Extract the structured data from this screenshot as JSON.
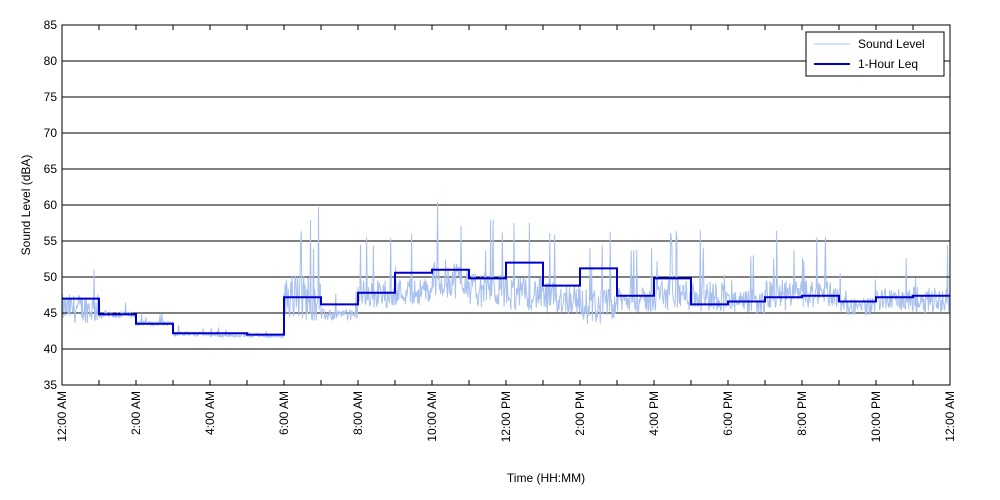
{
  "chart_data": {
    "type": "line",
    "xlabel": "Time (HH:MM)",
    "ylabel": "Sound Level (dBA)",
    "xlim": [
      0,
      24
    ],
    "ylim": [
      35,
      85
    ],
    "grid": "horizontal",
    "legend_position": "top-right",
    "x_ticks": [
      0,
      2,
      4,
      6,
      8,
      10,
      12,
      14,
      16,
      18,
      20,
      22,
      24
    ],
    "x_tick_labels": [
      "12:00 AM",
      "2:00 AM",
      "4:00 AM",
      "6:00 AM",
      "8:00 AM",
      "10:00 AM",
      "12:00 PM",
      "2:00 PM",
      "4:00 PM",
      "6:00 PM",
      "8:00 PM",
      "10:00 PM",
      "12:00 AM"
    ],
    "y_ticks": [
      35,
      40,
      45,
      50,
      55,
      60,
      65,
      70,
      75,
      80,
      85
    ],
    "series": [
      {
        "name": "Sound Level",
        "color": "#a8c0ee",
        "hourly_range": [
          [
            42.5,
            54.0
          ],
          [
            44.0,
            46.5
          ],
          [
            43.0,
            45.0
          ],
          [
            41.5,
            43.5
          ],
          [
            41.5,
            43.0
          ],
          [
            41.5,
            42.5
          ],
          [
            42.0,
            61.0
          ],
          [
            43.5,
            48.0
          ],
          [
            44.5,
            56.0
          ],
          [
            45.0,
            56.0
          ],
          [
            45.5,
            61.0
          ],
          [
            44.5,
            58.0
          ],
          [
            44.0,
            57.5
          ],
          [
            43.5,
            56.5
          ],
          [
            42.0,
            56.5
          ],
          [
            44.0,
            54.0
          ],
          [
            44.0,
            57.0
          ],
          [
            44.0,
            56.5
          ],
          [
            44.0,
            53.0
          ],
          [
            44.0,
            56.5
          ],
          [
            44.5,
            56.0
          ],
          [
            44.0,
            51.0
          ],
          [
            44.5,
            53.0
          ],
          [
            44.0,
            54.5
          ]
        ]
      },
      {
        "name": "1-Hour Leq",
        "color": "#0000cc",
        "x": [
          0,
          1,
          2,
          3,
          4,
          5,
          6,
          7,
          8,
          9,
          10,
          11,
          12,
          13,
          14,
          15,
          16,
          17,
          18,
          19,
          20,
          21,
          22,
          23
        ],
        "values": [
          47.0,
          44.8,
          43.5,
          42.2,
          42.2,
          42.0,
          47.2,
          46.2,
          47.8,
          50.6,
          51.0,
          49.8,
          52.0,
          48.8,
          51.2,
          47.4,
          49.8,
          46.2,
          46.6,
          47.2,
          47.4,
          46.6,
          47.2,
          47.4
        ]
      }
    ]
  }
}
